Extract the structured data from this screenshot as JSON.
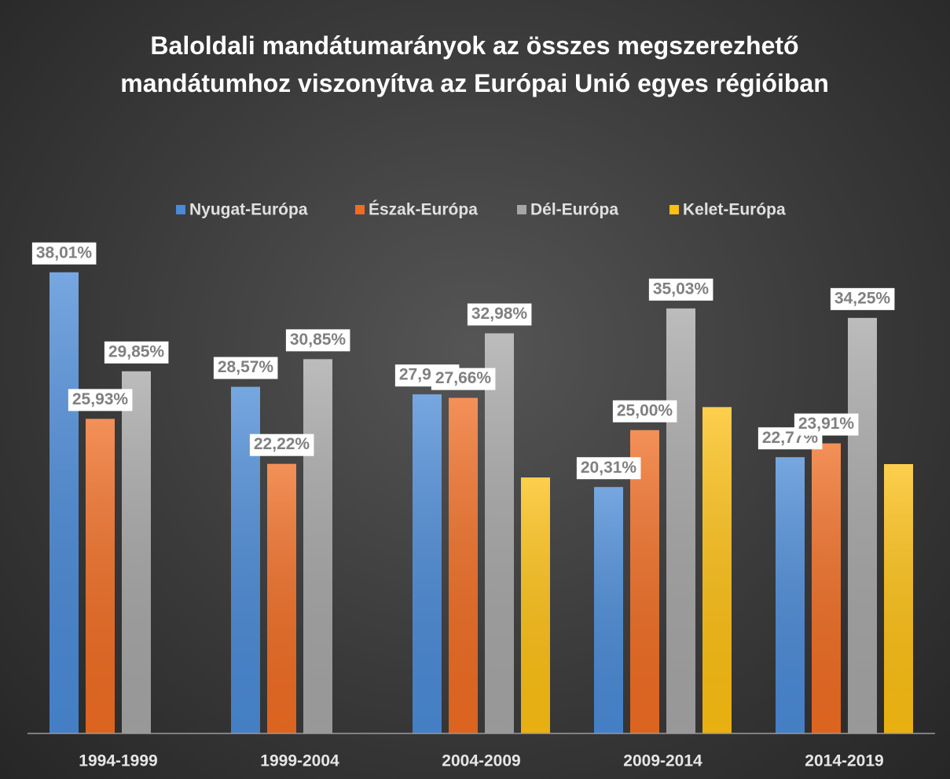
{
  "chart_data": {
    "type": "bar",
    "title": "Baloldali mandátumarányok az összes megszerezhető mandátumhoz viszonyítva az Európai Unió egyes régióiban",
    "categories": [
      "1994-1999",
      "1999-2004",
      "2004-2009",
      "2009-2014",
      "2014-2019"
    ],
    "series": [
      {
        "name": "Nyugat-Európa",
        "color": "#4a8ad6",
        "values": [
          38.01,
          28.57,
          27.95,
          20.31,
          22.77
        ],
        "value_labels": [
          "38,01%",
          "28,57%",
          "27,95%",
          "20,31%",
          "22,77%"
        ]
      },
      {
        "name": "Észak-Európa",
        "color": "#ef6c22",
        "values": [
          25.93,
          22.22,
          27.66,
          25.0,
          23.91
        ],
        "value_labels": [
          "25,93%",
          "22,22%",
          "27,66%",
          "25,00%",
          "23,91%"
        ]
      },
      {
        "name": "Dél-Európa",
        "color": "#a6a6a6",
        "values": [
          29.85,
          30.85,
          32.98,
          35.03,
          34.25
        ],
        "value_labels": [
          "29,85%",
          "30,85%",
          "32,98%",
          "35,03%",
          "34,25%"
        ]
      },
      {
        "name": "Kelet-Európa",
        "color": "#fcbf12",
        "values": [
          null,
          null,
          21.1,
          26.9,
          22.2
        ]
      }
    ],
    "ylim": [
      0,
      40
    ],
    "legend": "top"
  }
}
